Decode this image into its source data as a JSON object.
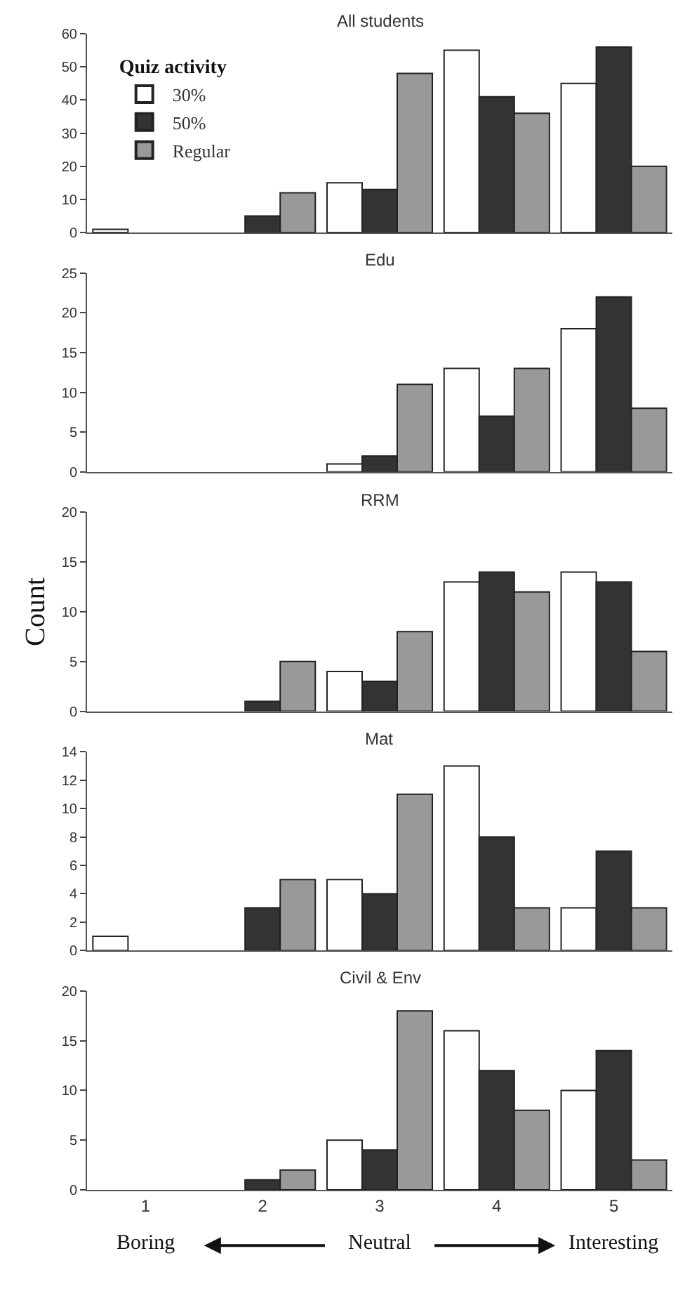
{
  "chart_data": [
    {
      "type": "bar",
      "title": "All students",
      "categories": [
        "1",
        "2",
        "3",
        "4",
        "5"
      ],
      "legend_title": "Quiz activity",
      "legend": "top left",
      "ylim": [
        0,
        60
      ],
      "yticks": [
        0,
        10,
        20,
        30,
        40,
        50,
        60
      ],
      "tick_labels": "y",
      "series": [
        {
          "name": "30%",
          "color": "#ffffff",
          "values": [
            1,
            0,
            15,
            55,
            45
          ]
        },
        {
          "name": "50%",
          "color": "#333333",
          "values": [
            0,
            5,
            13,
            41,
            56
          ]
        },
        {
          "name": "Regular",
          "color": "#999999",
          "values": [
            0,
            12,
            48,
            36,
            20
          ]
        }
      ]
    },
    {
      "type": "bar",
      "title": "Edu",
      "categories": [
        "1",
        "2",
        "3",
        "4",
        "5"
      ],
      "ylim": [
        0,
        25
      ],
      "yticks": [
        0,
        5,
        10,
        15,
        20,
        25
      ],
      "tick_labels": "y",
      "series": [
        {
          "color": "#ffffff",
          "values": [
            0,
            0,
            1,
            13,
            18
          ]
        },
        {
          "color": "#333333",
          "values": [
            0,
            0,
            2,
            7,
            22
          ]
        },
        {
          "color": "#999999",
          "values": [
            0,
            0,
            11,
            13,
            8
          ]
        }
      ]
    },
    {
      "type": "bar",
      "title": "RRM",
      "ylabel": "Count",
      "categories": [
        "1",
        "2",
        "3",
        "4",
        "5"
      ],
      "ylim": [
        0,
        20
      ],
      "yticks": [
        0,
        5,
        10,
        15,
        20
      ],
      "tick_labels": "y",
      "series": [
        {
          "color": "#ffffff",
          "values": [
            0,
            0,
            4,
            13,
            14
          ]
        },
        {
          "color": "#333333",
          "values": [
            0,
            1,
            3,
            14,
            13
          ]
        },
        {
          "color": "#999999",
          "values": [
            0,
            5,
            8,
            12,
            6
          ]
        }
      ]
    },
    {
      "type": "bar",
      "title": "Mat",
      "categories": [
        "1",
        "2",
        "3",
        "4",
        "5"
      ],
      "ylim": [
        0,
        14
      ],
      "yticks": [
        0,
        2,
        4,
        6,
        8,
        10,
        12,
        14
      ],
      "tick_labels": "y",
      "series": [
        {
          "color": "#ffffff",
          "values": [
            1,
            0,
            5,
            13,
            3
          ]
        },
        {
          "color": "#333333",
          "values": [
            0,
            3,
            4,
            8,
            7
          ]
        },
        {
          "color": "#999999",
          "values": [
            0,
            5,
            11,
            3,
            3
          ]
        }
      ]
    },
    {
      "type": "bar",
      "title": "Civil & Env",
      "categories": [
        "1",
        "2",
        "3",
        "4",
        "5"
      ],
      "ylim": [
        0,
        20
      ],
      "yticks": [
        0,
        5,
        10,
        15,
        20
      ],
      "annotations": [
        "Boring",
        "Neutral",
        "Interesting"
      ],
      "series": [
        {
          "color": "#ffffff",
          "values": [
            0,
            0,
            5,
            16,
            10
          ]
        },
        {
          "color": "#333333",
          "values": [
            0,
            1,
            4,
            12,
            14
          ]
        },
        {
          "color": "#999999",
          "values": [
            0,
            2,
            18,
            8,
            3
          ]
        }
      ]
    }
  ]
}
